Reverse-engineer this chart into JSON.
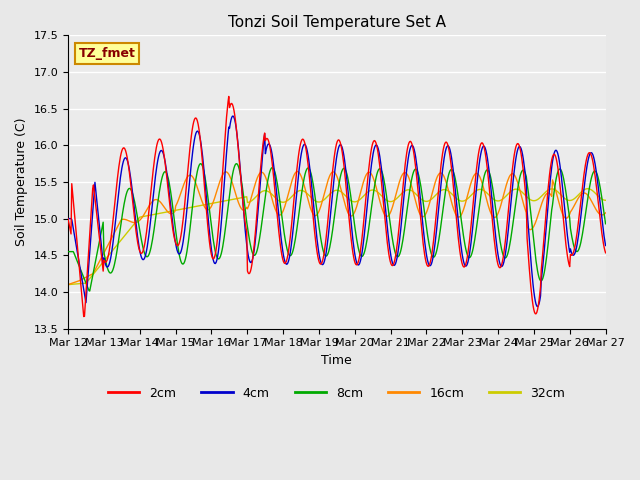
{
  "title": "Tonzi Soil Temperature Set A",
  "xlabel": "Time",
  "ylabel": "Soil Temperature (C)",
  "annotation": "TZ_fmet",
  "ylim": [
    13.5,
    17.5
  ],
  "xtick_labels": [
    "Mar 12",
    "Mar 13",
    "Mar 14",
    "Mar 15",
    "Mar 16",
    "Mar 17",
    "Mar 18",
    "Mar 19",
    "Mar 20",
    "Mar 21",
    "Mar 22",
    "Mar 23",
    "Mar 24",
    "Mar 25",
    "Mar 26",
    "Mar 27"
  ],
  "colors": {
    "2cm": "#FF0000",
    "4cm": "#0000CC",
    "8cm": "#00AA00",
    "16cm": "#FF8800",
    "32cm": "#CCCC00"
  },
  "legend_labels": [
    "2cm",
    "4cm",
    "8cm",
    "16cm",
    "32cm"
  ],
  "fig_bg_color": "#E8E8E8",
  "plot_bg_color": "#EBEBEB",
  "annotation_bg": "#FFFF99",
  "annotation_border": "#CC8800",
  "annotation_text_color": "#880000"
}
